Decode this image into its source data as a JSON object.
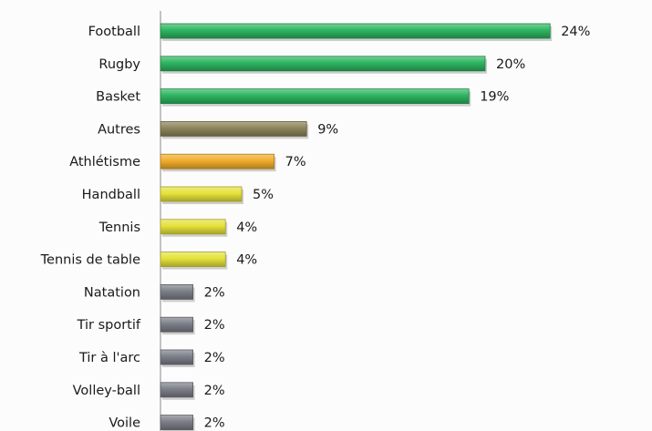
{
  "chart_data": {
    "type": "bar",
    "orientation": "horizontal",
    "categories": [
      "Football",
      "Rugby",
      "Basket",
      "Autres",
      "Athlétisme",
      "Handball",
      "Tennis",
      "Tennis de table",
      "Natation",
      "Tir sportif",
      "Tir à l'arc",
      "Volley-ball",
      "Voile"
    ],
    "values": [
      24,
      20,
      19,
      9,
      7,
      5,
      4,
      4,
      2,
      2,
      2,
      2,
      2
    ],
    "value_labels": [
      "24%",
      "20%",
      "19%",
      "9%",
      "7%",
      "5%",
      "4%",
      "4%",
      "2%",
      "2%",
      "2%",
      "2%",
      "2%"
    ],
    "colors": [
      "#2db560",
      "#2db560",
      "#2db560",
      "#8c8459",
      "#f1ad2b",
      "#e5e23a",
      "#e5e23a",
      "#e5e23a",
      "#7c7f88",
      "#7c7f88",
      "#7c7f88",
      "#7c7f88",
      "#7c7f88"
    ],
    "xlim": [
      0,
      24
    ],
    "grid": false,
    "legend": "none"
  }
}
